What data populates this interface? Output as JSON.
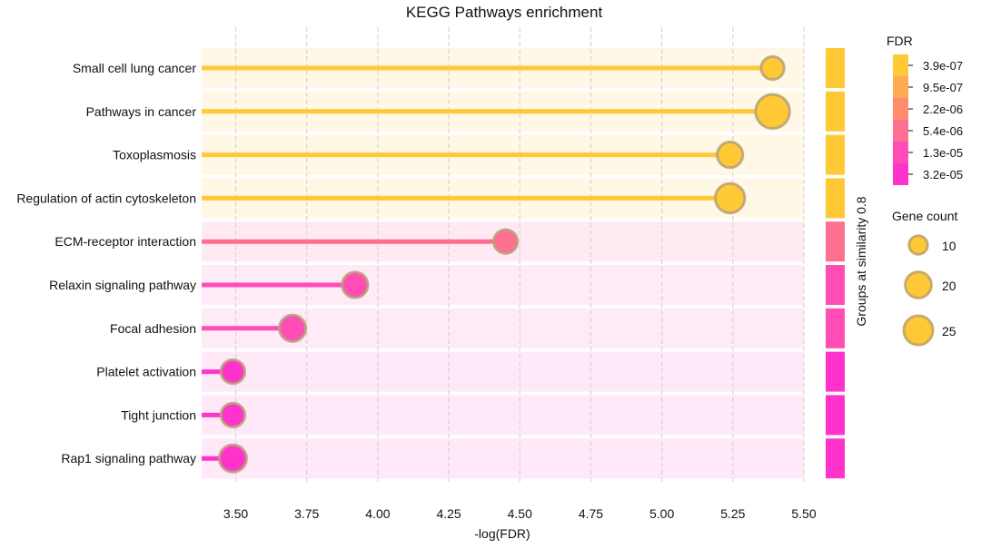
{
  "chart_data": {
    "type": "lollipop",
    "title": "KEGG Pathways enrichment",
    "xlabel": "-log(FDR)",
    "xlim": [
      3.38,
      5.5
    ],
    "xticks": [
      "3.50",
      "3.75",
      "4.00",
      "4.25",
      "4.50",
      "4.75",
      "5.00",
      "5.25",
      "5.50"
    ],
    "grid": true,
    "categories": [
      "Small cell lung cancer",
      "Pathways in cancer",
      "Toxoplasmosis",
      "Regulation of actin cytoskeleton",
      "ECM-receptor interaction",
      "Relaxin signaling pathway",
      "Focal adhesion",
      "Platelet activation",
      "Tight junction",
      "Rap1 signaling pathway"
    ],
    "values": [
      5.39,
      5.39,
      5.24,
      5.24,
      4.45,
      3.92,
      3.7,
      3.49,
      3.49,
      3.49
    ],
    "gene_counts": [
      9,
      24,
      12,
      17,
      10,
      12,
      13,
      10,
      10,
      14
    ],
    "colors": [
      "#ffc935",
      "#ffc935",
      "#ffc935",
      "#ffc935",
      "#ff7090",
      "#ff4db5",
      "#ff4db5",
      "#ff33cc",
      "#ff33cc",
      "#ff33cc"
    ],
    "row_backgrounds": [
      "#fff8e6",
      "#fff8e6",
      "#fff8e6",
      "#fff8e6",
      "#ffeaf4",
      "#ffeaf8",
      "#ffeaf8",
      "#ffe8f8",
      "#ffe8f8",
      "#ffe8f8"
    ],
    "group_label": "Groups at similarity 0.8",
    "fdr_legend": {
      "title": "FDR",
      "labels": [
        "3.9e-07",
        "9.5e-07",
        "2.2e-06",
        "5.4e-06",
        "1.3e-05",
        "3.2e-05"
      ],
      "colors": [
        "#ffc935",
        "#ffaa55",
        "#ff8c6e",
        "#ff7090",
        "#ff4db5",
        "#ff33cc"
      ]
    },
    "size_legend": {
      "title": "Gene count",
      "labels": [
        "10",
        "20",
        "25"
      ],
      "counts": [
        10,
        20,
        25
      ]
    }
  }
}
